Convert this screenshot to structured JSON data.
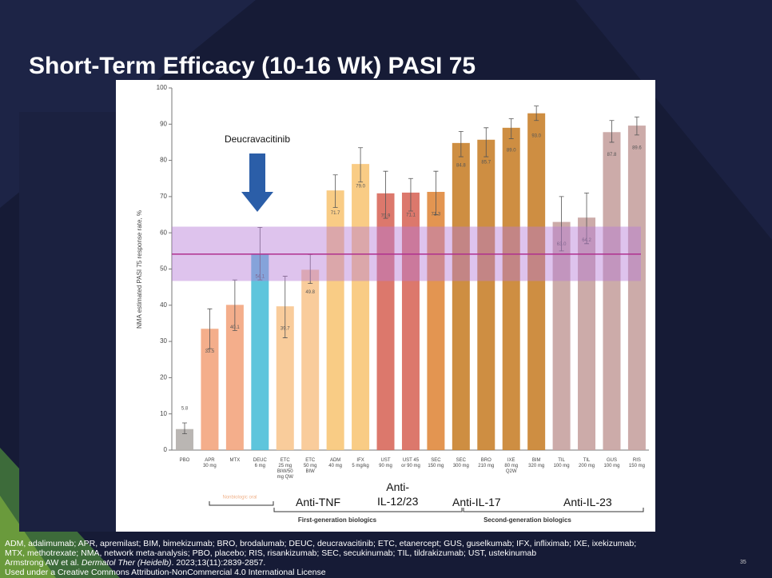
{
  "title": "Short-Term Efficacy (10-16 Wk) PASI 75",
  "chart_data": {
    "type": "bar",
    "ylabel": "NMA estimated PASI 75 response rate, %",
    "categories": [
      "PBO",
      "APR\n30 mg",
      "MTX",
      "DEUC\n6 mg",
      "ETC\n25 mg\nBIW/50\nmg QW",
      "ETC\n50 mg\nBIW",
      "ADM\n40 mg",
      "IFX\n5 mg/kg",
      "UST\n90 mg",
      "UST 45\nor 90 mg",
      "SEC\n150 mg",
      "SEC\n300 mg",
      "BRO\n210 mg",
      "IXE\n80 mg\nQ2W",
      "BIM\n320 mg",
      "TIL\n100 mg",
      "TIL\n200 mg",
      "GUS\n100 mg",
      "RIS\n150 mg"
    ],
    "values": [
      5.8,
      33.5,
      40.1,
      54.1,
      39.7,
      49.8,
      71.7,
      79.0,
      70.9,
      71.1,
      71.3,
      84.8,
      85.7,
      89.0,
      93.0,
      63.0,
      64.2,
      87.8,
      89.6
    ],
    "value_labels": [
      "5.8",
      "33.5",
      "40.1",
      "54.1",
      "39.7",
      "49.8",
      "71.7",
      "79.0",
      "70.9",
      "71.1",
      "71.3",
      "84.8",
      "85.7",
      "89.0",
      "93.0",
      "63.0",
      "64.2",
      "87.8",
      "89.6"
    ],
    "ci_low": [
      4.5,
      28,
      33,
      47,
      31,
      46,
      67,
      74,
      64,
      66,
      65,
      81,
      81,
      86,
      91,
      55,
      57,
      85,
      87
    ],
    "ci_high": [
      7.5,
      39,
      47,
      61.5,
      48,
      54,
      76,
      83.5,
      77,
      75,
      77,
      88,
      89,
      91.5,
      95,
      70,
      71,
      91,
      92
    ],
    "colors": [
      "#b3aeab",
      "#f3a57e",
      "#f3a57e",
      "#4cbfd8",
      "#f8c690",
      "#f8c690",
      "#f8c678",
      "#f8c678",
      "#d8695c",
      "#d8695c",
      "#e08a3e",
      "#c9822e",
      "#c9822e",
      "#c9822e",
      "#c9822e",
      "#c7a2a0",
      "#c7a2a0",
      "#c7a2a0",
      "#c7a2a0"
    ],
    "ylim": [
      0,
      100
    ],
    "yticks": [
      0,
      10,
      20,
      30,
      40,
      50,
      60,
      70,
      80,
      90,
      100
    ],
    "reference_band": [
      46.7,
      61.7
    ],
    "reference_line": 54.1,
    "annotation": "Deucravacitinib",
    "groups": [
      "Nonbiologic oral",
      "Anti-TNF",
      "Anti-\nIL-12/23",
      "Anti-IL-17",
      "Anti-IL-23"
    ],
    "supergroups": [
      "First-generation biologics",
      "Second-generation biologics"
    ]
  },
  "footnotes": [
    "ADM, adalimumab; APR, apremilast; BIM, bimekizumab; BRO, brodalumab; DEUC, deucravacitinib; ETC, etanercept; GUS, guselkumab; IFX, infliximab; IXE, ixekizumab;",
    "MTX, methotrexate; NMA, network meta-analysis; PBO, placebo; RIS, risankizumab; SEC, secukinumab; TIL, tildrakizumab; UST, ustekinumab"
  ],
  "citation": [
    "Armstrong AW et al. ",
    "Dermatol Ther (Heidelb)",
    ". 2023;13(11):2839-2857."
  ],
  "license": "Used under a Creative Commons Attribution-NonCommercial 4.0 International License",
  "page_number": "35"
}
